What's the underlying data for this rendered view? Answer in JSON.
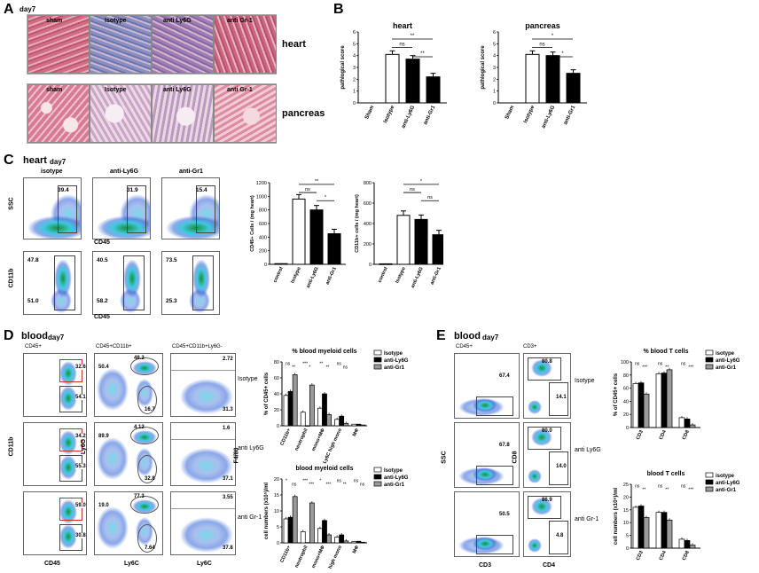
{
  "panelA": {
    "label": "A",
    "day": "day7",
    "heart_title": "heart",
    "pancreas_title": "pancreas",
    "columns": [
      "sham",
      "Isotype",
      "anti Ly6G",
      "anti Gr-1"
    ]
  },
  "panelB": {
    "label": "B",
    "ylabel": "pathlogical score",
    "charts": [
      {
        "title": "heart",
        "categories": [
          "Sham",
          "Isotype",
          "anti-Ly6G",
          "anti-Gr1"
        ],
        "values": [
          0,
          4.1,
          3.7,
          2.2
        ],
        "sig": [
          "ns",
          "**",
          "**"
        ]
      },
      {
        "title": "pancreas",
        "categories": [
          "Sham",
          "Isotype",
          "anti-Ly6G",
          "anti-Gr1"
        ],
        "values": [
          0,
          4.1,
          4.0,
          2.5
        ],
        "sig": [
          "ns",
          "*",
          "*"
        ]
      }
    ],
    "yticks": [
      "0",
      "1",
      "2",
      "3",
      "4",
      "5",
      "6"
    ]
  },
  "panelC": {
    "label": "C",
    "title": "heart",
    "day": "day7",
    "columns": [
      "isotype",
      "anti-Ly6G",
      "anti-Gr1"
    ],
    "top_values": [
      "39.4",
      "31.9",
      "15.4"
    ],
    "bottom_upper": [
      "47.8",
      "40.5",
      "73.5"
    ],
    "bottom_lower": [
      "51.0",
      "58.2",
      "25.3"
    ],
    "ssc": "SSC",
    "cd45": "CD45",
    "cd11b": "CD11b",
    "bar1": {
      "ylabel": "CD45+ Cells / (mg heart)",
      "categories": [
        "control",
        "Isotype",
        "anti-Ly6G",
        "anti-Gr1"
      ],
      "values": [
        10,
        960,
        800,
        450
      ],
      "yticks": [
        "0",
        "200",
        "400",
        "600",
        "800",
        "1000",
        "1200"
      ],
      "sig": [
        "ns",
        "**",
        "*"
      ]
    },
    "bar2": {
      "ylabel": "CD11b+ cells / (mg heart)",
      "categories": [
        "control",
        "Isotype",
        "anti-Ly6G",
        "anti-Gr1"
      ],
      "values": [
        5,
        480,
        440,
        290
      ],
      "yticks": [
        "0",
        "200",
        "400",
        "600",
        "800"
      ],
      "sig": [
        "ns",
        "*",
        "ns"
      ]
    }
  },
  "panelD": {
    "label": "D",
    "title": "blood",
    "day": "day7",
    "col_titles": [
      "CD45+",
      "CD45+CD11b+",
      "CD45+CD11b+Ly6G-"
    ],
    "rows": [
      {
        "name": "Isotype",
        "a": [
          "32.6",
          "54.1"
        ],
        "b": [
          "50.4",
          "48.2",
          "16.7"
        ],
        "c": [
          "2.72",
          "31.3"
        ]
      },
      {
        "name": "anti Ly6G",
        "a": [
          "34.2",
          "55.3"
        ],
        "b": [
          "89.9",
          "4.12",
          "32.8"
        ],
        "c": [
          "1.6",
          "37.1"
        ]
      },
      {
        "name": "anti Gr-1",
        "a": [
          "59.0",
          "30.8"
        ],
        "b": [
          "19.0",
          "77.3",
          "7.64"
        ],
        "c": [
          "3.55",
          "37.8"
        ]
      }
    ],
    "axes": {
      "cd11b": "CD11b",
      "ly6g": "Ly6G",
      "f480": "F4/80",
      "cd45": "CD45",
      "ly6c": "Ly6C"
    },
    "chart1": {
      "title": "% blood myeloid cells",
      "ylabel": "% of CD45+ cells",
      "categories": [
        "CD11b+",
        "neutrophil",
        "mono+MΦ",
        "Ly6C high mono",
        "MΦ"
      ],
      "series": [
        {
          "name": "Isotype",
          "values": [
            38,
            17,
            22,
            8,
            2
          ]
        },
        {
          "name": "anti-Ly6G",
          "values": [
            43,
            0,
            40,
            12,
            2
          ]
        },
        {
          "name": "anti-Gr1",
          "values": [
            64,
            51,
            14,
            3,
            1
          ]
        }
      ],
      "yticks": [
        "0",
        "20",
        "40",
        "60",
        "80"
      ],
      "sig": [
        "ns",
        "**",
        "***",
        "*",
        "**",
        "**",
        "ns",
        "ns"
      ]
    },
    "chart2": {
      "title": "blood myeloid cells",
      "ylabel": "cell numbers (x10⁵)/ml",
      "categories": [
        "CD11b+",
        "neutrophil",
        "mono+MΦ",
        "Ly6C high mono",
        "MΦ"
      ],
      "series": [
        {
          "name": "Isotype",
          "values": [
            7.5,
            3.5,
            4.5,
            1.8,
            0.4
          ]
        },
        {
          "name": "anti-Ly6G",
          "values": [
            8.0,
            0.1,
            7.0,
            2.5,
            0.5
          ]
        },
        {
          "name": "anti-Gr1",
          "values": [
            14.5,
            12.5,
            2.5,
            0.6,
            0.2
          ]
        }
      ],
      "yticks": [
        "0",
        "5",
        "10",
        "15",
        "20"
      ],
      "sig": [
        "*",
        "ns",
        "***",
        "***",
        "*",
        "***",
        "ns",
        "**",
        "ns",
        "ns"
      ]
    }
  },
  "panelE": {
    "label": "E",
    "title": "blood",
    "day": "day7",
    "col_titles": [
      "CD45+",
      "CD3+"
    ],
    "rows": [
      {
        "name": "Isotype",
        "a": "67.4",
        "b": [
          "80.8",
          "14.1"
        ]
      },
      {
        "name": "anti Ly6G",
        "a": "67.8",
        "b": [
          "80.0",
          "14.0"
        ]
      },
      {
        "name": "anti Gr-1",
        "a": "50.5",
        "b": [
          "86.9",
          "4.8"
        ]
      }
    ],
    "axes": {
      "ssc": "SSC",
      "cd8": "CD8",
      "cd3": "CD3",
      "cd4": "CD4"
    },
    "chart1": {
      "title": "% blood T cells",
      "ylabel": "% of CD45+ cells",
      "categories": [
        "CD3",
        "CD4",
        "CD8"
      ],
      "series": [
        {
          "name": "isotype",
          "values": [
            67,
            82,
            15
          ]
        },
        {
          "name": "anti-Ly6G",
          "values": [
            68,
            83,
            13
          ]
        },
        {
          "name": "anti-Gr1",
          "values": [
            51,
            88,
            4
          ]
        }
      ],
      "yticks": [
        "0",
        "20",
        "40",
        "60",
        "80",
        "100"
      ],
      "sig": [
        "ns",
        "***",
        "ns",
        "**",
        "ns",
        "***"
      ]
    },
    "chart2": {
      "title": "blood  T cells",
      "ylabel": "cell numbers (x10⁵)/ml",
      "categories": [
        "CD3",
        "CD4",
        "CD8"
      ],
      "series": [
        {
          "name": "isotype",
          "values": [
            16,
            14,
            3.5
          ]
        },
        {
          "name": "anti-Ly6G",
          "values": [
            16.5,
            14,
            3
          ]
        },
        {
          "name": "anti-Gr1",
          "values": [
            12,
            11,
            1.2
          ]
        }
      ],
      "yticks": [
        "0",
        "5",
        "10",
        "15",
        "20",
        "25"
      ],
      "sig": [
        "ns",
        "**",
        "ns",
        "**",
        "ns",
        "***"
      ]
    }
  },
  "colors": {
    "white": "#ffffff",
    "black": "#000000",
    "grey": "#9a9a9a",
    "he_pink": "#d98aa0",
    "he_blue": "#7a88b8",
    "facs_dense": "#1a8f3a",
    "facs_mid": "#3ec9e0",
    "facs_sparse": "#2b5fd6"
  }
}
